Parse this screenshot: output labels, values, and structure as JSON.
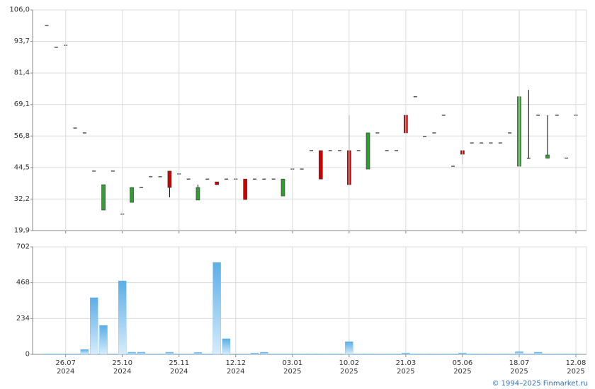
{
  "chart_data": [
    {
      "type": "candlestick",
      "open": [
        99.9,
        91.4,
        92.2,
        59.9,
        58.0,
        43.1,
        27.9,
        43.1,
        26.3,
        30.9,
        36.7,
        40.9,
        40.9,
        43.1,
        42.0,
        40.0,
        31.8,
        40.0,
        38.9,
        40.0,
        40.0,
        40.0,
        40.0,
        40.0,
        40.0,
        33.4,
        43.9,
        43.9,
        51.1,
        51.1,
        51.1,
        51.1,
        51.1,
        51.1,
        43.9,
        58.0,
        51.1,
        51.1,
        64.9,
        72.1,
        56.6,
        58.0,
        64.9,
        45.0,
        51.1,
        54.1,
        54.1,
        54.1,
        54.1,
        58.0,
        45.0,
        48.1,
        64.9,
        48.1,
        64.9,
        48.2,
        64.9
      ],
      "high": [
        99.9,
        91.4,
        92.2,
        59.9,
        58.0,
        43.1,
        37.8,
        43.1,
        26.3,
        36.7,
        36.7,
        40.9,
        40.9,
        43.1,
        42.0,
        40.0,
        37.8,
        40.0,
        38.9,
        40.0,
        40.0,
        40.0,
        40.0,
        40.0,
        40.0,
        40.0,
        43.9,
        43.9,
        51.1,
        51.1,
        51.1,
        51.1,
        64.9,
        51.1,
        58.0,
        58.0,
        51.1,
        51.1,
        64.9,
        72.1,
        56.6,
        58.0,
        64.9,
        45.0,
        51.1,
        54.1,
        54.1,
        54.1,
        54.1,
        58.0,
        72.1,
        74.8,
        64.9,
        64.9,
        64.9,
        48.2,
        64.9
      ],
      "low": [
        99.9,
        91.4,
        92.2,
        59.9,
        58.0,
        43.1,
        27.9,
        43.1,
        26.3,
        30.9,
        36.7,
        40.9,
        40.9,
        32.9,
        42.0,
        40.0,
        31.8,
        40.0,
        37.8,
        40.0,
        40.0,
        32.0,
        40.0,
        40.0,
        40.0,
        33.4,
        43.9,
        43.9,
        51.1,
        40.0,
        51.1,
        51.1,
        37.8,
        51.1,
        43.9,
        58.0,
        51.1,
        51.1,
        58.0,
        72.1,
        56.6,
        58.0,
        64.9,
        45.0,
        45.8,
        54.1,
        54.1,
        54.1,
        54.1,
        58.0,
        45.0,
        48.1,
        64.9,
        48.1,
        64.9,
        48.2,
        64.9
      ],
      "close": [
        99.9,
        91.4,
        92.2,
        59.9,
        58.0,
        43.1,
        37.8,
        43.1,
        26.3,
        36.7,
        36.7,
        40.9,
        40.9,
        36.7,
        42.0,
        40.0,
        36.7,
        40.0,
        37.8,
        40.0,
        40.0,
        32.0,
        40.0,
        40.0,
        40.0,
        40.0,
        43.9,
        43.9,
        51.1,
        40.0,
        51.1,
        51.1,
        37.8,
        51.1,
        58.0,
        58.0,
        51.1,
        51.1,
        58.0,
        72.1,
        56.6,
        58.0,
        64.9,
        45.0,
        49.7,
        54.1,
        54.1,
        54.1,
        54.1,
        58.0,
        72.1,
        48.1,
        64.9,
        49.4,
        64.9,
        48.2,
        64.9
      ],
      "up_color": "#2e9e2e",
      "down_color": "#cc0000",
      "flat_color": "#000000",
      "ylim": [
        19.9,
        106.0
      ],
      "yticks": [
        {
          "value": 19.9,
          "label": "19,9"
        },
        {
          "value": 32.2,
          "label": "32,2"
        },
        {
          "value": 44.5,
          "label": "44,5"
        },
        {
          "value": 56.8,
          "label": "56,8"
        },
        {
          "value": 69.1,
          "label": "69,1"
        },
        {
          "value": 81.4,
          "label": "81,4"
        },
        {
          "value": 93.7,
          "label": "93,7"
        },
        {
          "value": 106.0,
          "label": "106,0"
        }
      ],
      "grid": true
    },
    {
      "type": "bar",
      "categories": [
        null,
        null,
        {
          "date": "26.07",
          "year": "2024"
        },
        null,
        null,
        null,
        null,
        null,
        {
          "date": "25.10",
          "year": "2024"
        },
        null,
        null,
        null,
        null,
        null,
        {
          "date": "25.11",
          "year": "2024"
        },
        null,
        null,
        null,
        null,
        null,
        {
          "date": "12.12",
          "year": "2024"
        },
        null,
        null,
        null,
        null,
        null,
        {
          "date": "03.01",
          "year": "2025"
        },
        null,
        null,
        null,
        null,
        null,
        {
          "date": "10.02",
          "year": "2025"
        },
        null,
        null,
        null,
        null,
        null,
        {
          "date": "21.03",
          "year": "2025"
        },
        null,
        null,
        null,
        null,
        null,
        {
          "date": "05.06",
          "year": "2025"
        },
        null,
        null,
        null,
        null,
        null,
        {
          "date": "18.07",
          "year": "2025"
        },
        null,
        null,
        null,
        null,
        null,
        {
          "date": "12.08",
          "year": "2025"
        }
      ],
      "values": [
        3,
        3,
        3,
        3,
        32,
        370,
        189,
        3,
        480,
        14,
        14,
        3,
        3,
        14,
        3,
        3,
        12,
        3,
        600,
        102,
        3,
        3,
        9,
        14,
        3,
        3,
        3,
        3,
        3,
        3,
        3,
        3,
        83,
        3,
        3,
        3,
        3,
        3,
        9,
        3,
        3,
        3,
        3,
        3,
        9,
        3,
        3,
        3,
        3,
        3,
        18,
        3,
        14,
        3,
        3,
        3,
        3
      ],
      "color": "#5aaee8",
      "ylim": [
        0,
        702
      ],
      "yticks": [
        0,
        234,
        468,
        702
      ],
      "grid": true
    }
  ],
  "credit": "© 1994–2025 Finmarket.ru"
}
